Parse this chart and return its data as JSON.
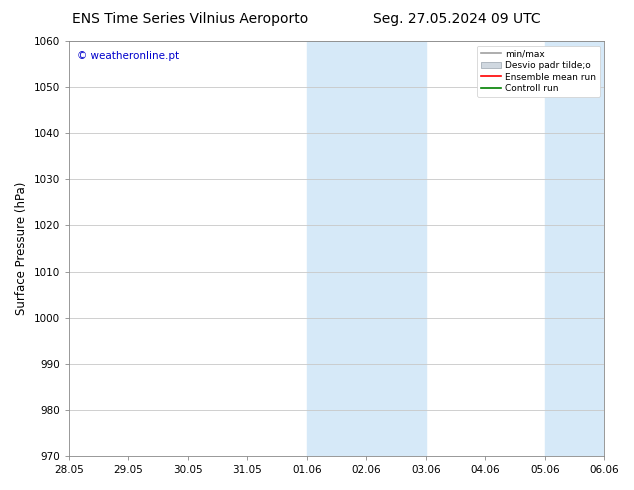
{
  "title_left": "ENS Time Series Vilnius Aeroportto",
  "title_left_display": "ENS Time Series Vilnius Aeroporto",
  "title_right": "Seg. 27.05.2024 09 UTC",
  "ylabel": "Surface Pressure (hPa)",
  "ylim": [
    970,
    1060
  ],
  "yticks": [
    970,
    980,
    990,
    1000,
    1010,
    1020,
    1030,
    1040,
    1050,
    1060
  ],
  "xtick_labels": [
    "28.05",
    "29.05",
    "30.05",
    "31.05",
    "01.06",
    "02.06",
    "03.06",
    "04.06",
    "05.06",
    "06.06"
  ],
  "shaded_regions": [
    {
      "xstart": 4,
      "xend": 6,
      "color": "#d6e9f8"
    },
    {
      "xstart": 8,
      "xend": 9,
      "color": "#d6e9f8"
    }
  ],
  "legend_labels": [
    "min/max",
    "Desvio padr tilde;o",
    "Ensemble mean run",
    "Controll run"
  ],
  "legend_colors": [
    "#a0a0a0",
    "#d0d8e0",
    "#ff0000",
    "#008000"
  ],
  "watermark": "© weatheronline.pt",
  "watermark_color": "#0000cc",
  "background_color": "#ffffff",
  "plot_bg_color": "#ffffff",
  "grid_color": "#c8c8c8",
  "title_fontsize": 10,
  "tick_fontsize": 7.5,
  "ylabel_fontsize": 8.5
}
